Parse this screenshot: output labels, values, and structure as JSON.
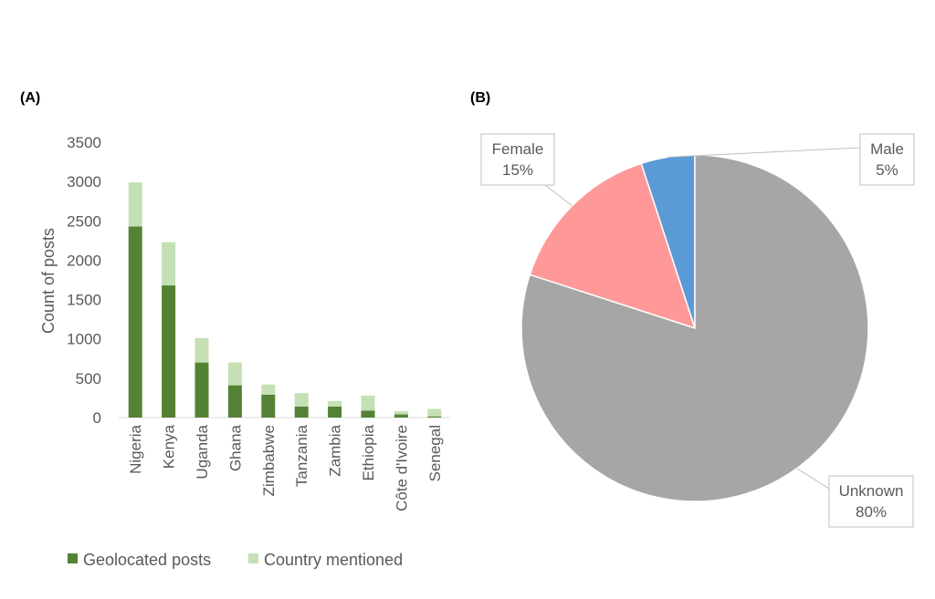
{
  "panels": {
    "a_label": "(A)",
    "b_label": "(B)"
  },
  "chart_data": [
    {
      "type": "bar",
      "stacked": true,
      "categories": [
        "Nigeria",
        "Kenya",
        "Uganda",
        "Ghana",
        "Zimbabwe",
        "Tanzania",
        "Zambia",
        "Ethiopia",
        "Côte d'Ivoire",
        "Senegal"
      ],
      "series": [
        {
          "name": "Geolocated posts",
          "color": "#548235",
          "values": [
            2430,
            1680,
            700,
            410,
            290,
            140,
            140,
            90,
            40,
            15
          ]
        },
        {
          "name": "Country mentioned",
          "color": "#C5E0B4",
          "values": [
            560,
            550,
            310,
            290,
            130,
            170,
            70,
            190,
            40,
            95
          ]
        }
      ],
      "ylabel": "Count of posts",
      "ylim": [
        0,
        3500
      ],
      "yticks": [
        0,
        500,
        1000,
        1500,
        2000,
        2500,
        3000,
        3500
      ],
      "legend": "bottom"
    },
    {
      "type": "pie",
      "slices": [
        {
          "label": "Male",
          "value": 5,
          "display": "5%",
          "color": "#5B9BD5"
        },
        {
          "label": "Female",
          "value": 15,
          "display": "15%",
          "color": "#FF9999"
        },
        {
          "label": "Unknown",
          "value": 80,
          "display": "80%",
          "color": "#A6A6A6"
        }
      ]
    }
  ]
}
